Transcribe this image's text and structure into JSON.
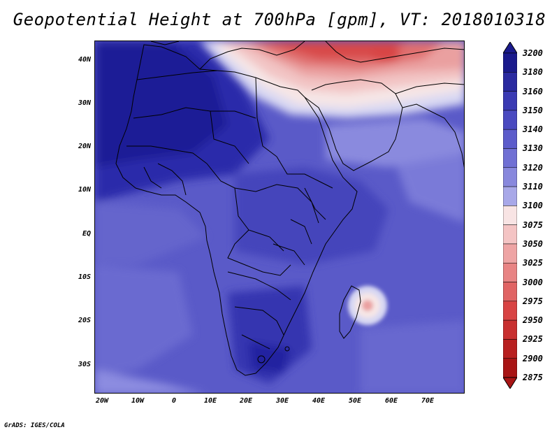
{
  "title": "Geopotential Height at 700hPa [gpm], VT: 2018010318",
  "credit": "GrADS: IGES/COLA",
  "map": {
    "lat_labels": [
      "40N",
      "30N",
      "20N",
      "10N",
      "EQ",
      "10S",
      "20S",
      "30S"
    ],
    "lon_labels": [
      "20W",
      "10W",
      "0",
      "10E",
      "20E",
      "30E",
      "40E",
      "50E",
      "60E",
      "70E"
    ],
    "region": "Africa, Arabia and western Indian Ocean"
  },
  "colorbar": {
    "labels": [
      "3200",
      "3180",
      "3160",
      "3150",
      "3140",
      "3130",
      "3120",
      "3110",
      "3100",
      "3075",
      "3050",
      "3025",
      "3000",
      "2975",
      "2950",
      "2925",
      "2900",
      "2875"
    ],
    "colors": [
      "#1a1a8c",
      "#2a2aa0",
      "#3a3ab3",
      "#4a4ac0",
      "#5c5ccb",
      "#7070d4",
      "#8888dd",
      "#a8a8e8",
      "#d8d8f3",
      "#f8e4e4",
      "#f4c4c4",
      "#eea4a4",
      "#e88484",
      "#e06464",
      "#d84444",
      "#c83030",
      "#b82020",
      "#a81515"
    ]
  }
}
